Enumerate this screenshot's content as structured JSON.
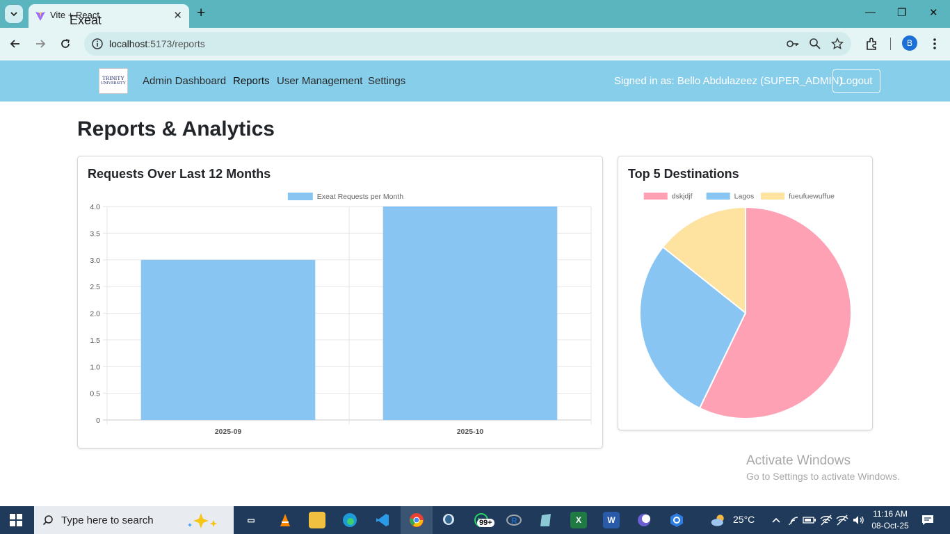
{
  "browser": {
    "tab_title": "Vite + React",
    "url_host": "localhost",
    "url_path": ":5173/reports",
    "profile_initial": "B"
  },
  "navbar": {
    "brand": "Exeat",
    "logo_text": "TRINITY",
    "logo_sub": "UNIVERSITY",
    "links": [
      "Admin Dashboard",
      "Reports",
      "User Management",
      "Settings"
    ],
    "signed_in": "Signed in as: Bello Abdulazeez (SUPER_ADMIN)",
    "logout": "Logout"
  },
  "page": {
    "title": "Reports & Analytics"
  },
  "colors": {
    "navbar": "#87ceeb",
    "bar": "#88c5f2",
    "pie": [
      "#ffa1b5",
      "#88c5f2",
      "#fde2a0"
    ]
  },
  "chart_data": [
    {
      "type": "bar",
      "title": "Requests Over Last 12 Months",
      "categories": [
        "2025-09",
        "2025-10"
      ],
      "series": [
        {
          "name": "Exeat Requests per Month",
          "values": [
            3,
            4
          ]
        }
      ],
      "ylim": [
        0,
        4
      ],
      "yticks": [
        "0",
        "0.5",
        "1.0",
        "1.5",
        "2.0",
        "2.5",
        "3.0",
        "3.5",
        "4.0"
      ],
      "grid": true,
      "legend": "top"
    },
    {
      "type": "pie",
      "title": "Top 5 Destinations",
      "labels": [
        "dskjdjf",
        "Lagos",
        "fueufuewuffue"
      ],
      "values": [
        4,
        2,
        1
      ],
      "legend": "top"
    }
  ],
  "watermark": {
    "title": "Activate Windows",
    "subtitle": "Go to Settings to activate Windows."
  },
  "taskbar": {
    "search_placeholder": "Type here to search",
    "notification_badge": "99+",
    "weather": "25°C",
    "time": "11:16 AM",
    "date": "08-Oct-25"
  }
}
